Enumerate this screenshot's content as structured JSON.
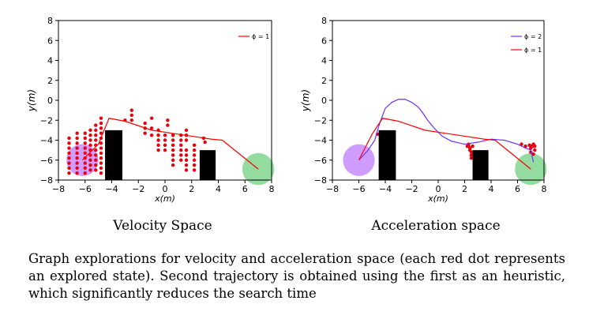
{
  "chart_data": [
    {
      "type": "line",
      "panel": "left",
      "xlabel": "x(m)",
      "ylabel": "y(m)",
      "xlim": [
        -8,
        8
      ],
      "ylim": [
        -8,
        8
      ],
      "xticks": [
        -8,
        -6,
        -4,
        -2,
        0,
        2,
        4,
        6,
        8
      ],
      "yticks": [
        8,
        6,
        4,
        2,
        0,
        -2,
        -4,
        -6,
        -8
      ],
      "tick_labels_x": [
        "−8",
        "−6",
        "−4",
        "−2",
        "0",
        "2",
        "4",
        "6",
        "8"
      ],
      "tick_labels_y": [
        "8",
        "6",
        "4",
        "2",
        "0",
        "−2",
        "−4",
        "−6",
        "−8"
      ],
      "legend_position": "upper-right",
      "series": [
        {
          "name": "ϕ = 1",
          "color": "#ff0000",
          "x": [
            -6.2,
            -5.0,
            -4.2,
            -3.0,
            -1.0,
            0.5,
            2.0,
            3.5,
            4.3,
            7.0
          ],
          "y": [
            -6.0,
            -4.4,
            -1.8,
            -2.1,
            -3.0,
            -3.3,
            -3.6,
            -3.9,
            -4.0,
            -6.9
          ]
        }
      ],
      "explored_states": {
        "color": "#e8000a",
        "points": [
          [
            -7.2,
            -3.8
          ],
          [
            -7.2,
            -4.3
          ],
          [
            -7.2,
            -4.8
          ],
          [
            -7.2,
            -5.3
          ],
          [
            -7.2,
            -5.8
          ],
          [
            -7.2,
            -6.3
          ],
          [
            -7.2,
            -6.8
          ],
          [
            -7.2,
            -7.3
          ],
          [
            -6.6,
            -3.3
          ],
          [
            -6.6,
            -3.8
          ],
          [
            -6.6,
            -4.3
          ],
          [
            -6.6,
            -4.8
          ],
          [
            -6.6,
            -5.3
          ],
          [
            -6.6,
            -5.8
          ],
          [
            -6.6,
            -6.3
          ],
          [
            -6.6,
            -6.8
          ],
          [
            -6.6,
            -7.3
          ],
          [
            -6.0,
            -3.3
          ],
          [
            -6.0,
            -3.8
          ],
          [
            -6.0,
            -4.3
          ],
          [
            -6.0,
            -4.8
          ],
          [
            -6.0,
            -5.3
          ],
          [
            -6.0,
            -5.8
          ],
          [
            -6.0,
            -6.3
          ],
          [
            -6.0,
            -6.8
          ],
          [
            -6.0,
            -7.3
          ],
          [
            -5.6,
            -3.0
          ],
          [
            -5.6,
            -3.5
          ],
          [
            -5.6,
            -4.0
          ],
          [
            -5.6,
            -4.5
          ],
          [
            -5.6,
            -5.0
          ],
          [
            -5.6,
            -5.5
          ],
          [
            -5.6,
            -6.0
          ],
          [
            -5.6,
            -6.5
          ],
          [
            -5.6,
            -7.0
          ],
          [
            -5.2,
            -2.5
          ],
          [
            -5.2,
            -3.0
          ],
          [
            -5.2,
            -3.5
          ],
          [
            -5.2,
            -4.0
          ],
          [
            -5.2,
            -4.5
          ],
          [
            -5.2,
            -5.0
          ],
          [
            -5.2,
            -5.5
          ],
          [
            -5.2,
            -6.0
          ],
          [
            -5.2,
            -6.5
          ],
          [
            -5.2,
            -7.0
          ],
          [
            -4.8,
            -1.8
          ],
          [
            -4.8,
            -2.3
          ],
          [
            -4.8,
            -2.8
          ],
          [
            -4.8,
            -3.3
          ],
          [
            -4.8,
            -3.8
          ],
          [
            -4.8,
            -4.3
          ],
          [
            -4.8,
            -4.8
          ],
          [
            -4.8,
            -5.3
          ],
          [
            -4.8,
            -5.8
          ],
          [
            -4.8,
            -6.3
          ],
          [
            -4.8,
            -6.8
          ],
          [
            -4.8,
            -7.3
          ],
          [
            -3.0,
            -2.0
          ],
          [
            -2.5,
            -2.0
          ],
          [
            -2.5,
            -1.5
          ],
          [
            -2.5,
            -1.0
          ],
          [
            -1.5,
            -2.3
          ],
          [
            -1.5,
            -2.8
          ],
          [
            -1.5,
            -3.3
          ],
          [
            -1.0,
            -1.8
          ],
          [
            -1.0,
            -2.8
          ],
          [
            -1.0,
            -3.5
          ],
          [
            -0.5,
            -3.0
          ],
          [
            -0.5,
            -3.5
          ],
          [
            -0.5,
            -4.0
          ],
          [
            -0.5,
            -4.5
          ],
          [
            -0.5,
            -5.0
          ],
          [
            0.0,
            -3.5
          ],
          [
            0.0,
            -4.0
          ],
          [
            0.0,
            -4.5
          ],
          [
            0.0,
            -5.0
          ],
          [
            0.2,
            -2.0
          ],
          [
            0.2,
            -2.5
          ],
          [
            0.6,
            -3.5
          ],
          [
            0.6,
            -4.0
          ],
          [
            0.6,
            -4.5
          ],
          [
            0.6,
            -5.0
          ],
          [
            0.6,
            -5.5
          ],
          [
            0.6,
            -6.0
          ],
          [
            0.6,
            -6.5
          ],
          [
            1.2,
            -3.5
          ],
          [
            1.2,
            -4.0
          ],
          [
            1.2,
            -4.5
          ],
          [
            1.2,
            -5.0
          ],
          [
            1.2,
            -5.5
          ],
          [
            1.2,
            -6.0
          ],
          [
            1.6,
            -3.0
          ],
          [
            1.6,
            -3.5
          ],
          [
            1.6,
            -4.0
          ],
          [
            1.6,
            -5.0
          ],
          [
            1.6,
            -5.5
          ],
          [
            1.6,
            -6.0
          ],
          [
            1.6,
            -6.5
          ],
          [
            1.6,
            -7.0
          ],
          [
            2.2,
            -4.5
          ],
          [
            2.2,
            -5.0
          ],
          [
            2.2,
            -5.5
          ],
          [
            2.2,
            -6.0
          ],
          [
            2.2,
            -6.5
          ],
          [
            2.2,
            -7.0
          ],
          [
            2.9,
            -3.8
          ],
          [
            3.0,
            -4.2
          ]
        ]
      },
      "obstacles": [
        {
          "x0": -4.5,
          "x1": -3.2,
          "y0": -8,
          "y1": -3.0
        },
        {
          "x0": 2.6,
          "x1": 3.8,
          "y0": -8,
          "y1": -5.0
        }
      ],
      "start": {
        "x": -6.2,
        "y": -6.0,
        "r": 1.2,
        "color": "#a64dff"
      },
      "goal": {
        "x": 7.0,
        "y": -6.9,
        "r": 1.2,
        "color": "#66cc77"
      }
    },
    {
      "type": "line",
      "panel": "right",
      "xlabel": "x(m)",
      "ylabel": "y(m)",
      "xlim": [
        -8,
        8
      ],
      "ylim": [
        -8,
        8
      ],
      "xticks": [
        -8,
        -6,
        -4,
        -2,
        0,
        2,
        4,
        6,
        8
      ],
      "yticks": [
        8,
        6,
        4,
        2,
        0,
        -2,
        -4,
        -6,
        -8
      ],
      "tick_labels_x": [
        "−8",
        "−6",
        "−4",
        "−2",
        "0",
        "2",
        "4",
        "6",
        "8"
      ],
      "tick_labels_y": [
        "8",
        "6",
        "4",
        "2",
        "0",
        "−2",
        "−4",
        "−6",
        "−8"
      ],
      "legend_position": "upper-right",
      "series": [
        {
          "name": "ϕ = 2",
          "color": "#7030ff",
          "x": [
            -6.0,
            -5.3,
            -4.8,
            -4.4,
            -4.0,
            -3.5,
            -3.0,
            -2.5,
            -2.0,
            -1.5,
            -1.2,
            -0.8,
            -0.3,
            0.3,
            1.0,
            2.0,
            3.0,
            4.0,
            5.0,
            6.0,
            6.6,
            7.0,
            7.2
          ],
          "y": [
            -6.0,
            -5.0,
            -4.0,
            -2.2,
            -0.8,
            -0.2,
            0.1,
            0.1,
            -0.2,
            -0.7,
            -1.2,
            -2.0,
            -2.8,
            -3.6,
            -4.1,
            -4.4,
            -4.2,
            -3.9,
            -4.0,
            -4.4,
            -4.8,
            -5.0,
            -6.2
          ]
        },
        {
          "name": "ϕ = 1",
          "color": "#ff0000",
          "x": [
            -6.0,
            -5.0,
            -4.2,
            -3.0,
            -1.0,
            0.5,
            2.0,
            3.5,
            4.3,
            7.0
          ],
          "y": [
            -6.0,
            -3.4,
            -1.8,
            -2.1,
            -3.0,
            -3.3,
            -3.6,
            -3.9,
            -4.0,
            -6.9
          ]
        }
      ],
      "explored_states": {
        "color": "#e8000a",
        "points": [
          [
            -4.4,
            -3.4
          ],
          [
            -4.6,
            -3.4
          ],
          [
            2.3,
            -4.4
          ],
          [
            2.3,
            -4.6
          ],
          [
            2.4,
            -4.8
          ],
          [
            2.4,
            -5.0
          ],
          [
            2.5,
            -5.2
          ],
          [
            2.5,
            -5.5
          ],
          [
            2.5,
            -5.8
          ],
          [
            2.2,
            -4.6
          ],
          [
            2.6,
            -4.6
          ],
          [
            6.3,
            -4.4
          ],
          [
            6.6,
            -4.6
          ],
          [
            6.9,
            -4.5
          ],
          [
            7.0,
            -4.8
          ],
          [
            7.1,
            -4.6
          ],
          [
            7.2,
            -4.4
          ],
          [
            7.3,
            -4.6
          ],
          [
            7.3,
            -5.0
          ],
          [
            7.2,
            -5.4
          ],
          [
            7.0,
            -5.2
          ]
        ]
      },
      "obstacles": [
        {
          "x0": -4.5,
          "x1": -3.2,
          "y0": -8,
          "y1": -3.0
        },
        {
          "x0": 2.6,
          "x1": 3.8,
          "y0": -8,
          "y1": -5.0
        }
      ],
      "start": {
        "x": -6.0,
        "y": -6.0,
        "r": 1.2,
        "color": "#a64dff"
      },
      "goal": {
        "x": 7.0,
        "y": -6.9,
        "r": 1.2,
        "color": "#66cc77"
      }
    }
  ],
  "captions": {
    "left": "Velocity Space",
    "right": "Acceleration space",
    "main": "Graph explorations for velocity and acceleration space (each red dot represents an explored state). Second trajectory is obtained using the first as an heuristic, which significantly reduces the search time"
  }
}
